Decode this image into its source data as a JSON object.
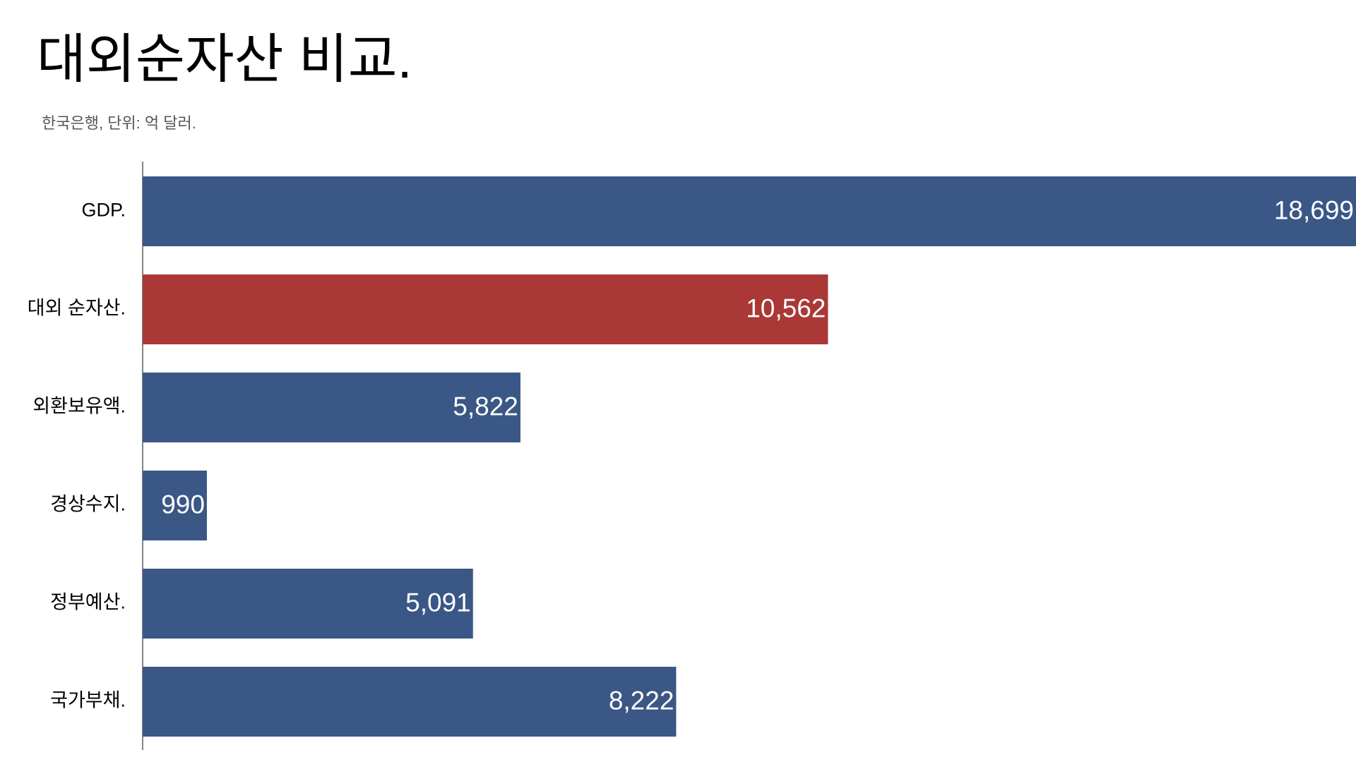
{
  "chart_data": {
    "type": "barh",
    "title": "대외순자산 비교.",
    "subtitle": "한국은행, 단위: 억 달러.",
    "categories": [
      "GDP.",
      "대외 순자산.",
      "외환보유액.",
      "경상수지.",
      "정부예산.",
      "국가부채."
    ],
    "values": [
      18699,
      10562,
      5822,
      990,
      5091,
      8222
    ],
    "value_labels": [
      "18,699",
      "10,562",
      "5,822",
      "990",
      "5,091",
      "8,222"
    ],
    "colors": [
      "#3a5785",
      "#a93836",
      "#3a5785",
      "#3a5785",
      "#3a5785",
      "#3a5785"
    ]
  }
}
